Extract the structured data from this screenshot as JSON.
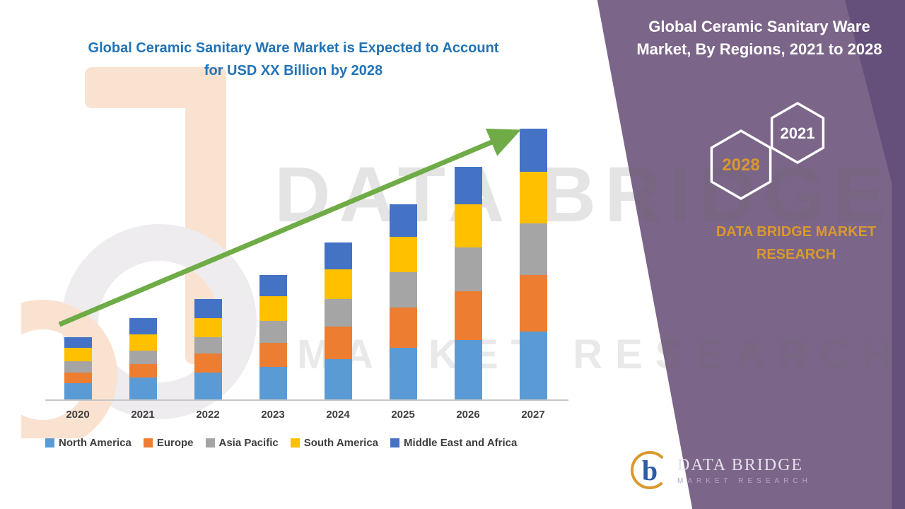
{
  "left": {
    "title_line1": "Global Ceramic Sanitary Ware Market is Expected to Account",
    "title_line2": "for USD XX Billion by 2028"
  },
  "chart_data": {
    "type": "bar",
    "stacked": true,
    "title": "Global Ceramic Sanitary Ware Market is Expected to Account for USD XX Billion by 2028",
    "categories": [
      "2020",
      "2021",
      "2022",
      "2023",
      "2024",
      "2025",
      "2026",
      "2027"
    ],
    "series": [
      {
        "name": "North America",
        "color": "#5B9BD5",
        "values": [
          6,
          8,
          10,
          12,
          15,
          19,
          22,
          25
        ]
      },
      {
        "name": "Europe",
        "color": "#ED7D31",
        "values": [
          4,
          5,
          7,
          9,
          12,
          15,
          18,
          21
        ]
      },
      {
        "name": "Asia Pacific",
        "color": "#A5A5A5",
        "values": [
          4,
          5,
          6,
          8,
          10,
          13,
          16,
          19
        ]
      },
      {
        "name": "South America",
        "color": "#FFC000",
        "values": [
          5,
          6,
          7,
          9,
          11,
          13,
          16,
          19
        ]
      },
      {
        "name": "Middle East and Africa",
        "color": "#4472C4",
        "values": [
          4,
          6,
          7,
          8,
          10,
          12,
          14,
          16
        ]
      }
    ],
    "xlabel": "",
    "ylabel": "",
    "ylim": [
      0,
      101
    ],
    "grid": false,
    "legend_position": "bottom",
    "trend_arrow": true,
    "trend_arrow_color": "#6FAC47",
    "units": "relative index (USD XX Billion not disclosed)"
  },
  "right": {
    "title": "Global Ceramic Sanitary Ware Market, By Regions, 2021 to 2028",
    "hexagons": [
      {
        "label": "2028"
      },
      {
        "label": "2021"
      }
    ],
    "brand": "DATA BRIDGE MARKET RESEARCH"
  },
  "watermark": {
    "line1": "DATA BRIDGE",
    "line2": "MARKET RESEARCH"
  },
  "footer_logo": {
    "name": "DATA BRIDGE",
    "sub": "MARKET RESEARCH"
  },
  "colors": {
    "panel_purple": "#7B6588",
    "panel_dark_purple": "#64507A",
    "title_blue": "#2273B5",
    "gold": "#D9992E",
    "trend_green": "#6FAC47"
  }
}
